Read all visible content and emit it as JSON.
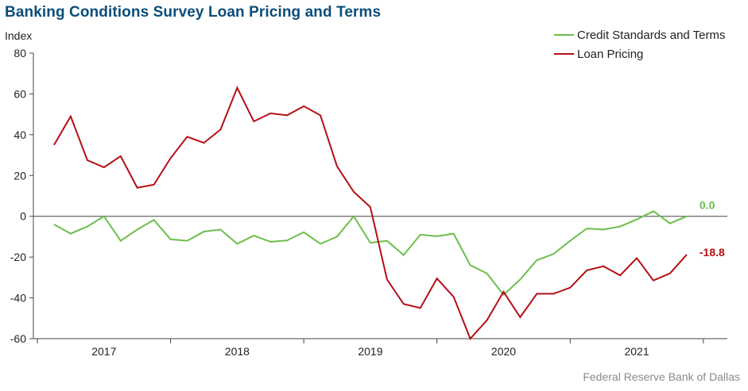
{
  "title": "Banking Conditions Survey Loan Pricing and Terms",
  "source": "Federal Reserve Bank of Dallas",
  "chart_data": {
    "type": "line",
    "ylabel": "Index",
    "ylim": [
      -60,
      80
    ],
    "yticks": [
      80,
      60,
      40,
      20,
      0,
      -20,
      -40,
      -60
    ],
    "xticks": [
      {
        "label": "2017",
        "x": 2017
      },
      {
        "label": "2018",
        "x": 2018
      },
      {
        "label": "2019",
        "x": 2019
      },
      {
        "label": "2020",
        "x": 2020
      },
      {
        "label": "2021",
        "x": 2021
      }
    ],
    "xlim": [
      2016.47,
      2021.68
    ],
    "legend_position": "top-right",
    "grid": false,
    "x": [
      2016.625,
      2016.75,
      2016.875,
      2017.0,
      2017.125,
      2017.25,
      2017.375,
      2017.5,
      2017.625,
      2017.75,
      2017.875,
      2018.0,
      2018.125,
      2018.25,
      2018.375,
      2018.5,
      2018.625,
      2018.75,
      2018.875,
      2019.0,
      2019.125,
      2019.25,
      2019.375,
      2019.5,
      2019.625,
      2019.75,
      2019.875,
      2020.0,
      2020.125,
      2020.25,
      2020.375,
      2020.5,
      2020.625,
      2020.75,
      2020.875,
      2021.0,
      2021.125,
      2021.25,
      2021.375
    ],
    "series": [
      {
        "name": "Credit Standards and Terms",
        "color": "#6cbf4b",
        "values": [
          -4,
          -8.5,
          -5,
          0,
          -12,
          -6.5,
          -1.8,
          -11.3,
          -12,
          -7.5,
          -6.5,
          -13.5,
          -9.5,
          -12.5,
          -11.8,
          -7.8,
          -13.5,
          -10,
          0,
          -13,
          -12,
          -19,
          -9,
          -9.8,
          -8.5,
          -24,
          -28,
          -38.5,
          -31,
          -21.5,
          -18.5,
          -12,
          -6,
          -6.5,
          -5,
          -1.5,
          2.5,
          -3.5,
          0
        ],
        "end_label": "0.0"
      },
      {
        "name": "Loan Pricing",
        "color": "#b30f14",
        "values": [
          35,
          49,
          27.5,
          24,
          29.5,
          14,
          15.5,
          28.5,
          39,
          36,
          42.5,
          63,
          46.5,
          50.5,
          49.5,
          54,
          49.5,
          24.5,
          12,
          4.5,
          -31,
          -43,
          -45,
          -30.5,
          -39.5,
          -60,
          -51,
          -37,
          -49.5,
          -38,
          -38,
          -35,
          -26.5,
          -24.5,
          -29,
          -20.5,
          -31.5,
          -28,
          -18.8
        ],
        "end_label": "-18.8"
      }
    ]
  }
}
